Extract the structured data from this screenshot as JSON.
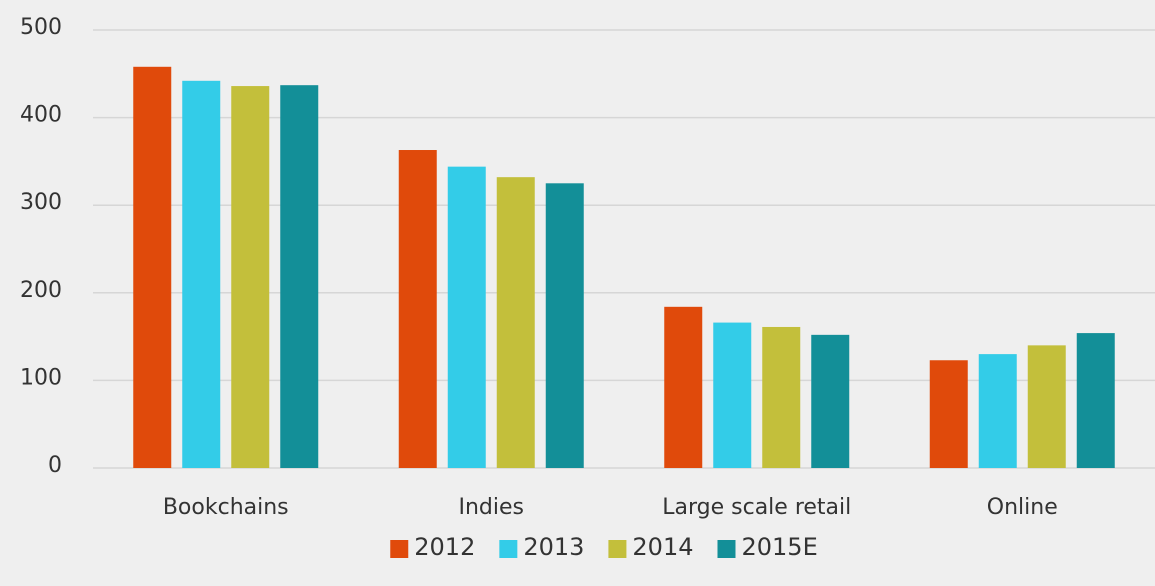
{
  "chart_data": {
    "type": "bar",
    "categories": [
      "Bookchains",
      "Indies",
      "Large scale retail",
      "Online"
    ],
    "series": [
      {
        "name": "2012",
        "color": "#e04a0b",
        "values": [
          458,
          363,
          184,
          123
        ]
      },
      {
        "name": "2013",
        "color": "#33cce8",
        "values": [
          442,
          344,
          166,
          130
        ]
      },
      {
        "name": "2014",
        "color": "#c3bf3b",
        "values": [
          436,
          332,
          161,
          140
        ]
      },
      {
        "name": "2015E",
        "color": "#138f98",
        "values": [
          437,
          325,
          152,
          154
        ]
      }
    ],
    "ylim": [
      0,
      500
    ],
    "yticks": [
      0,
      100,
      200,
      300,
      400,
      500
    ],
    "grid": true,
    "legend": "bottom"
  }
}
